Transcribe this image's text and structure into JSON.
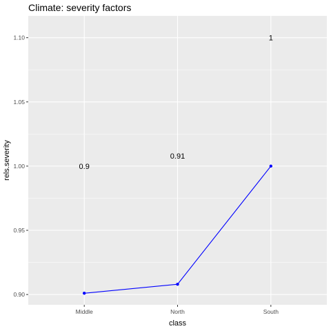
{
  "chart_data": {
    "type": "line",
    "title": "Climate: severity factors",
    "xlabel": "class",
    "ylabel": "rels.severity",
    "categories": [
      "Middle",
      "North",
      "South"
    ],
    "series": [
      {
        "values": [
          0.901,
          0.908,
          1.0
        ],
        "color": "#0000ff"
      }
    ],
    "data_labels": [
      {
        "text": "0.9",
        "y": 1.0
      },
      {
        "text": "0.91",
        "y": 1.008
      },
      {
        "text": "1",
        "y": 1.1
      }
    ],
    "ylim": [
      0.892,
      1.117
    ],
    "yticks": [
      0.9,
      0.95,
      1.0,
      1.05,
      1.1
    ],
    "ytick_labels": [
      "0.90",
      "0.95",
      "1.00",
      "1.05",
      "1.10"
    ],
    "grid": true,
    "panel_color": "#ebebeb"
  }
}
